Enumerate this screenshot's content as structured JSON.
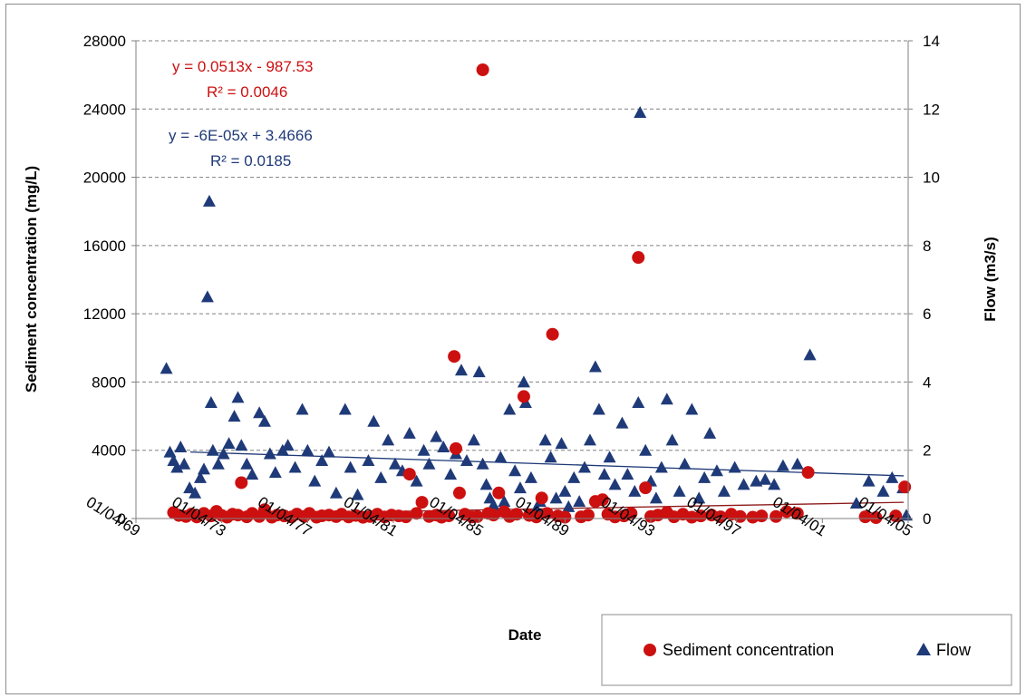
{
  "chart_data": {
    "type": "scatter",
    "xlabel": "Date",
    "ylabel_left": "Sediment concentration (mg/L)",
    "ylabel_right": "Flow (m3/s)",
    "x_range": [
      "1969-04-01",
      "2005-04-01"
    ],
    "x_tick_labels": [
      "01/04/69",
      "01/04/73",
      "01/04/77",
      "01/04/81",
      "01/04/85",
      "01/04/89",
      "01/04/93",
      "01/04/97",
      "01/04/01",
      "01/04/05"
    ],
    "ylim_left": [
      0,
      28000
    ],
    "y_ticks_left": [
      0,
      4000,
      8000,
      12000,
      16000,
      20000,
      24000,
      28000
    ],
    "ylim_right": [
      0,
      14
    ],
    "y_ticks_right": [
      0,
      2,
      4,
      6,
      8,
      10,
      12,
      14
    ],
    "grid": "horizontal dashed",
    "legend_position": "bottom-right",
    "series": [
      {
        "name": "Sediment concentration",
        "axis": "left",
        "marker": "circle",
        "color": "#cc1010",
        "trendline": {
          "equation": "y = 0.0513x - 987.53",
          "r2": "R² = 0.0046",
          "start": 200,
          "end": 950
        },
        "points": [
          [
            "1971-01-01",
            350
          ],
          [
            "1971-04-01",
            180
          ],
          [
            "1971-08-01",
            120
          ],
          [
            "1971-11-01",
            260
          ],
          [
            "1972-02-01",
            90
          ],
          [
            "1972-06-01",
            300
          ],
          [
            "1972-10-01",
            150
          ],
          [
            "1973-01-01",
            420
          ],
          [
            "1973-04-01",
            180
          ],
          [
            "1973-07-01",
            80
          ],
          [
            "1973-10-01",
            250
          ],
          [
            "1974-01-01",
            200
          ],
          [
            "1974-03-01",
            2100
          ],
          [
            "1974-06-01",
            100
          ],
          [
            "1974-09-01",
            300
          ],
          [
            "1975-01-01",
            120
          ],
          [
            "1975-04-01",
            520
          ],
          [
            "1975-08-01",
            80
          ],
          [
            "1975-11-01",
            200
          ],
          [
            "1976-03-01",
            150
          ],
          [
            "1976-07-01",
            90
          ],
          [
            "1976-10-01",
            260
          ],
          [
            "1977-02-01",
            120
          ],
          [
            "1977-05-01",
            300
          ],
          [
            "1977-09-01",
            80
          ],
          [
            "1977-12-01",
            160
          ],
          [
            "1978-04-01",
            200
          ],
          [
            "1978-08-01",
            110
          ],
          [
            "1978-11-01",
            250
          ],
          [
            "1979-03-01",
            90
          ],
          [
            "1979-07-01",
            180
          ],
          [
            "1979-11-01",
            70
          ],
          [
            "1980-03-01",
            120
          ],
          [
            "1980-07-01",
            250
          ],
          [
            "1980-11-01",
            90
          ],
          [
            "1981-03-01",
            200
          ],
          [
            "1981-07-01",
            150
          ],
          [
            "1981-11-01",
            100
          ],
          [
            "1982-01-01",
            2600
          ],
          [
            "1982-05-01",
            300
          ],
          [
            "1982-08-01",
            950
          ],
          [
            "1982-12-01",
            120
          ],
          [
            "1983-04-01",
            200
          ],
          [
            "1983-07-01",
            80
          ],
          [
            "1983-11-01",
            160
          ],
          [
            "1984-02-01",
            9500
          ],
          [
            "1984-03-01",
            4100
          ],
          [
            "1984-05-01",
            1500
          ],
          [
            "1984-08-01",
            250
          ],
          [
            "1984-12-01",
            90
          ],
          [
            "1985-03-01",
            120
          ],
          [
            "1985-06-01",
            26300
          ],
          [
            "1985-09-01",
            300
          ],
          [
            "1985-12-01",
            200
          ],
          [
            "1986-03-01",
            1500
          ],
          [
            "1986-06-01",
            400
          ],
          [
            "1986-09-01",
            120
          ],
          [
            "1987-01-01",
            250
          ],
          [
            "1987-05-01",
            7150
          ],
          [
            "1987-08-01",
            180
          ],
          [
            "1987-12-01",
            90
          ],
          [
            "1988-03-01",
            1200
          ],
          [
            "1988-06-01",
            300
          ],
          [
            "1988-09-01",
            10800
          ],
          [
            "1988-12-01",
            150
          ],
          [
            "1989-04-01",
            80
          ],
          [
            "1990-01-01",
            100
          ],
          [
            "1990-05-01",
            200
          ],
          [
            "1990-09-01",
            1000
          ],
          [
            "1991-01-01",
            1100
          ],
          [
            "1991-04-01",
            250
          ],
          [
            "1991-08-01",
            90
          ],
          [
            "1992-01-01",
            150
          ],
          [
            "1992-05-01",
            300
          ],
          [
            "1992-09-01",
            15300
          ],
          [
            "1993-01-01",
            1800
          ],
          [
            "1993-04-01",
            120
          ],
          [
            "1993-08-01",
            200
          ],
          [
            "1994-01-01",
            350
          ],
          [
            "1994-05-01",
            100
          ],
          [
            "1994-10-01",
            250
          ],
          [
            "1995-03-01",
            80
          ],
          [
            "1995-08-01",
            150
          ],
          [
            "1996-02-01",
            200
          ],
          [
            "1996-07-01",
            100
          ],
          [
            "1997-01-01",
            250
          ],
          [
            "1997-06-01",
            120
          ],
          [
            "1998-01-01",
            80
          ],
          [
            "1998-06-01",
            150
          ],
          [
            "1999-02-01",
            120
          ],
          [
            "1999-08-01",
            400
          ],
          [
            "2000-02-01",
            300
          ],
          [
            "2000-08-01",
            2700
          ],
          [
            "2003-04-01",
            100
          ],
          [
            "2003-10-01",
            50
          ],
          [
            "2004-09-01",
            150
          ],
          [
            "2005-02-01",
            1850
          ]
        ]
      },
      {
        "name": "Flow",
        "axis": "right",
        "marker": "triangle",
        "color": "#1f3a78",
        "trendline": {
          "equation": "y = -6E-05x + 3.4666",
          "r2": "R² = 0.0185",
          "start": 1.95,
          "end": 1.25
        },
        "points": [
          [
            "1970-09-01",
            4.4
          ],
          [
            "1970-11-01",
            1.95
          ],
          [
            "1971-01-01",
            1.7
          ],
          [
            "1971-03-01",
            1.5
          ],
          [
            "1971-05-01",
            2.1
          ],
          [
            "1971-07-01",
            1.6
          ],
          [
            "1971-10-01",
            0.9
          ],
          [
            "1972-01-01",
            0.75
          ],
          [
            "1972-04-01",
            1.2
          ],
          [
            "1972-06-01",
            1.45
          ],
          [
            "1972-08-01",
            6.5
          ],
          [
            "1972-09-01",
            9.3
          ],
          [
            "1972-10-01",
            3.4
          ],
          [
            "1972-11-01",
            2.0
          ],
          [
            "1973-02-01",
            1.6
          ],
          [
            "1973-05-01",
            1.9
          ],
          [
            "1973-08-01",
            2.2
          ],
          [
            "1973-11-01",
            3.0
          ],
          [
            "1974-01-01",
            3.55
          ],
          [
            "1974-03-01",
            2.15
          ],
          [
            "1974-06-01",
            1.6
          ],
          [
            "1974-09-01",
            1.3
          ],
          [
            "1975-01-01",
            3.1
          ],
          [
            "1975-04-01",
            2.85
          ],
          [
            "1975-07-01",
            1.9
          ],
          [
            "1975-10-01",
            1.35
          ],
          [
            "1976-02-01",
            2.0
          ],
          [
            "1976-05-01",
            2.15
          ],
          [
            "1976-09-01",
            1.5
          ],
          [
            "1977-01-01",
            3.2
          ],
          [
            "1977-04-01",
            2.0
          ],
          [
            "1977-08-01",
            1.1
          ],
          [
            "1977-12-01",
            1.7
          ],
          [
            "1978-04-01",
            1.95
          ],
          [
            "1978-08-01",
            0.75
          ],
          [
            "1979-01-01",
            3.2
          ],
          [
            "1979-04-01",
            1.5
          ],
          [
            "1979-08-01",
            0.7
          ],
          [
            "1980-02-01",
            1.7
          ],
          [
            "1980-05-01",
            2.85
          ],
          [
            "1980-09-01",
            1.2
          ],
          [
            "1981-01-01",
            2.3
          ],
          [
            "1981-05-01",
            1.6
          ],
          [
            "1981-09-01",
            1.4
          ],
          [
            "1982-01-01",
            2.5
          ],
          [
            "1982-05-01",
            1.1
          ],
          [
            "1982-09-01",
            2.0
          ],
          [
            "1982-12-01",
            1.6
          ],
          [
            "1983-04-01",
            2.4
          ],
          [
            "1983-08-01",
            2.1
          ],
          [
            "1983-12-01",
            1.3
          ],
          [
            "1984-03-01",
            1.9
          ],
          [
            "1984-06-01",
            4.35
          ],
          [
            "1984-09-01",
            1.7
          ],
          [
            "1985-01-01",
            2.3
          ],
          [
            "1985-04-01",
            4.3
          ],
          [
            "1985-06-01",
            1.6
          ],
          [
            "1985-08-01",
            1.0
          ],
          [
            "1985-10-01",
            0.6
          ],
          [
            "1985-12-01",
            0.4
          ],
          [
            "1986-02-01",
            0.2
          ],
          [
            "1986-04-01",
            1.8
          ],
          [
            "1986-06-01",
            0.5
          ],
          [
            "1986-09-01",
            3.2
          ],
          [
            "1986-12-01",
            1.4
          ],
          [
            "1987-03-01",
            0.9
          ],
          [
            "1987-05-01",
            4.0
          ],
          [
            "1987-06-01",
            3.4
          ],
          [
            "1987-09-01",
            1.2
          ],
          [
            "1987-12-01",
            0.3
          ],
          [
            "1988-02-01",
            0.5
          ],
          [
            "1988-05-01",
            2.3
          ],
          [
            "1988-08-01",
            1.8
          ],
          [
            "1988-11-01",
            0.6
          ],
          [
            "1989-02-01",
            2.2
          ],
          [
            "1989-04-01",
            0.8
          ],
          [
            "1989-06-01",
            0.35
          ],
          [
            "1989-09-01",
            1.2
          ],
          [
            "1989-12-01",
            0.5
          ],
          [
            "1990-03-01",
            1.5
          ],
          [
            "1990-06-01",
            2.3
          ],
          [
            "1990-09-01",
            4.45
          ],
          [
            "1990-11-01",
            3.2
          ],
          [
            "1991-02-01",
            1.3
          ],
          [
            "1991-05-01",
            1.8
          ],
          [
            "1991-08-01",
            1.0
          ],
          [
            "1991-12-01",
            2.8
          ],
          [
            "1992-03-01",
            1.3
          ],
          [
            "1992-07-01",
            0.8
          ],
          [
            "1992-09-01",
            3.4
          ],
          [
            "1992-10-01",
            11.9
          ],
          [
            "1993-01-01",
            2.0
          ],
          [
            "1993-04-01",
            1.1
          ],
          [
            "1993-07-01",
            0.6
          ],
          [
            "1993-10-01",
            1.5
          ],
          [
            "1994-01-01",
            3.5
          ],
          [
            "1994-04-01",
            2.3
          ],
          [
            "1994-08-01",
            0.8
          ],
          [
            "1994-11-01",
            1.6
          ],
          [
            "1995-03-01",
            3.2
          ],
          [
            "1995-07-01",
            0.6
          ],
          [
            "1995-10-01",
            1.2
          ],
          [
            "1996-01-01",
            2.5
          ],
          [
            "1996-05-01",
            1.4
          ],
          [
            "1996-09-01",
            0.8
          ],
          [
            "1997-03-01",
            1.5
          ],
          [
            "1997-08-01",
            1.0
          ],
          [
            "1998-03-01",
            1.1
          ],
          [
            "1998-08-01",
            1.15
          ],
          [
            "1999-01-01",
            1.0
          ],
          [
            "1999-06-01",
            1.55
          ],
          [
            "2000-02-01",
            1.6
          ],
          [
            "2000-09-01",
            4.8
          ],
          [
            "2002-11-01",
            0.45
          ],
          [
            "2003-06-01",
            1.1
          ],
          [
            "2004-02-01",
            0.8
          ],
          [
            "2004-07-01",
            1.2
          ],
          [
            "2005-01-01",
            0.9
          ],
          [
            "2005-03-01",
            0.1
          ]
        ]
      }
    ]
  }
}
